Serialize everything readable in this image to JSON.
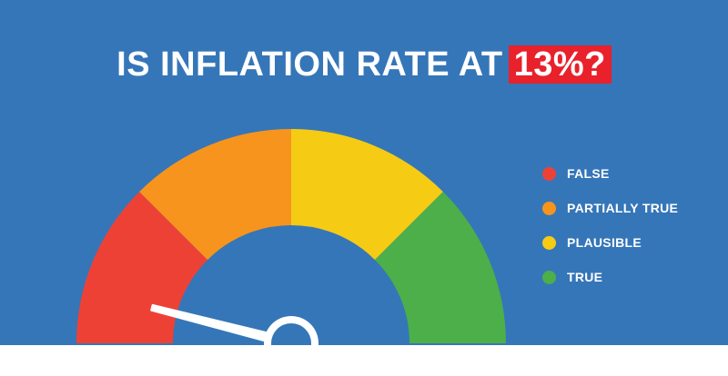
{
  "title": {
    "text": "IS INFLATION RATE AT",
    "highlight": "13%?"
  },
  "gauge": {
    "needle_value": 0.08,
    "segments": [
      {
        "name": "false",
        "color": "#ee4136"
      },
      {
        "name": "partially-true",
        "color": "#f7941d"
      },
      {
        "name": "plausible",
        "color": "#f5cb14"
      },
      {
        "name": "true",
        "color": "#4caf4a"
      }
    ]
  },
  "legend": {
    "items": [
      {
        "label": "FALSE",
        "color": "#ee4136"
      },
      {
        "label": "PARTIALLY TRUE",
        "color": "#f7941d"
      },
      {
        "label": "PLAUSIBLE",
        "color": "#f5cb14"
      },
      {
        "label": "TRUE",
        "color": "#4caf4a"
      }
    ]
  },
  "colors": {
    "background": "#3576b8",
    "highlight": "#e8212b",
    "needle": "#ffffff"
  }
}
